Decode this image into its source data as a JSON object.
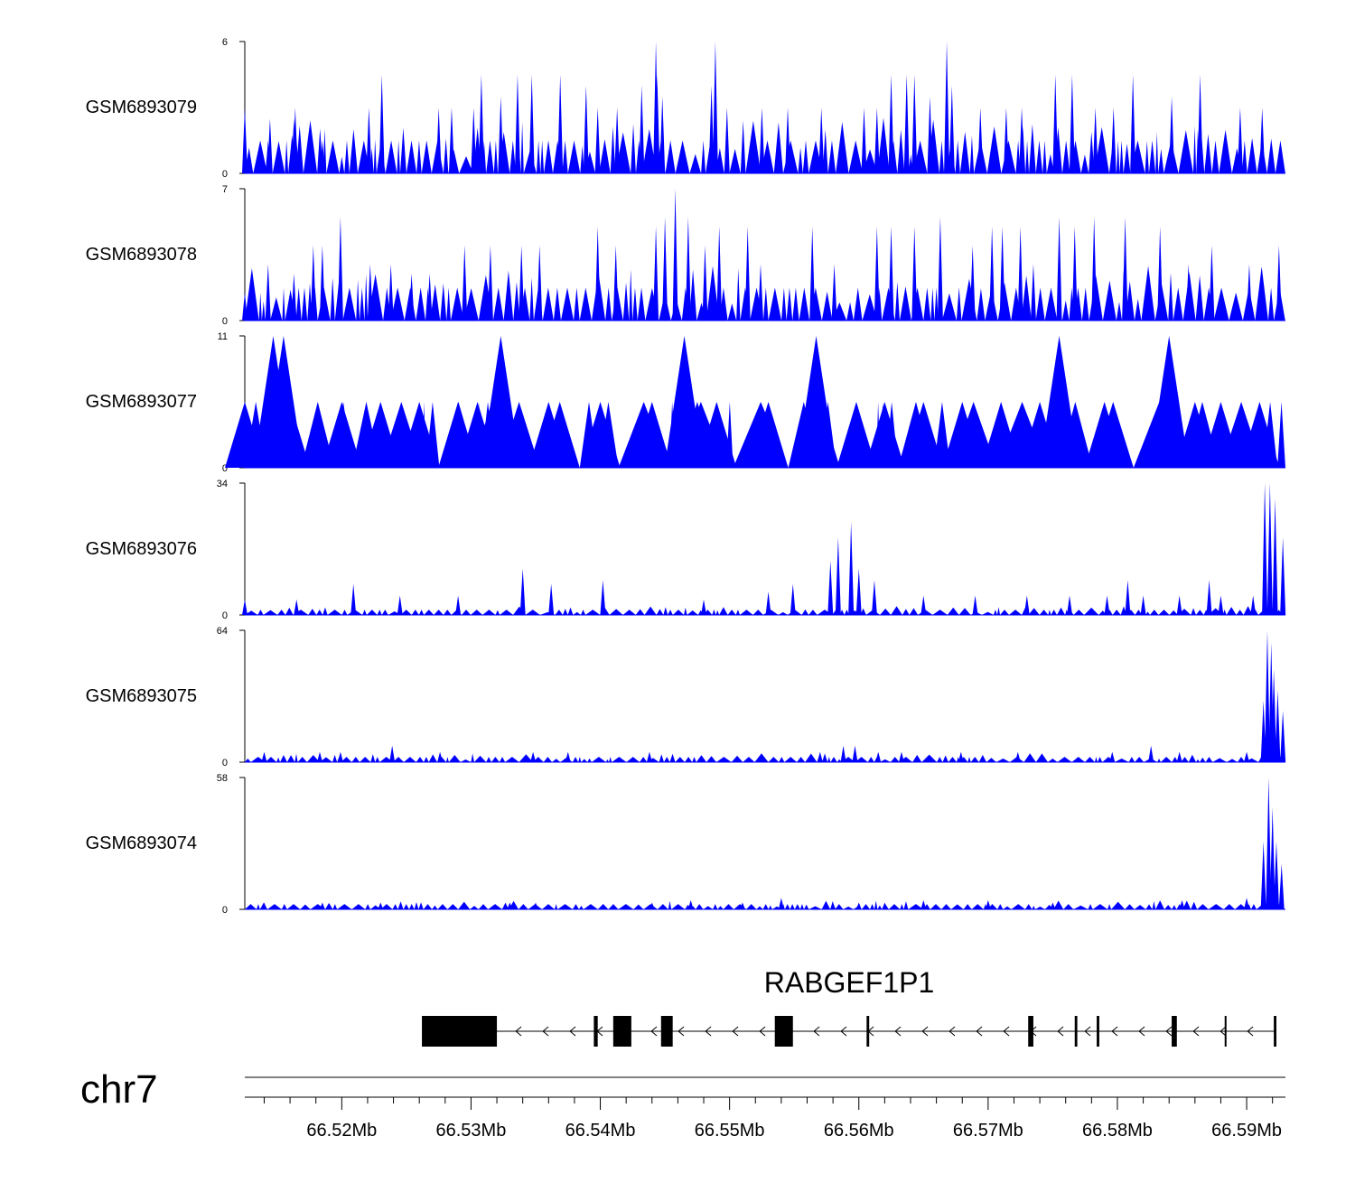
{
  "chart_data": {
    "type": "area",
    "title": "",
    "xlabel": "",
    "ylabel": "",
    "chromosome": "chr7",
    "x_range_mb": [
      66.5125,
      66.593
    ],
    "x_ticks": [
      66.52,
      66.53,
      66.54,
      66.55,
      66.56,
      66.57,
      66.58,
      66.59
    ],
    "x_tick_labels": [
      "66.52Mb",
      "66.53Mb",
      "66.54Mb",
      "66.55Mb",
      "66.56Mb",
      "66.57Mb",
      "66.58Mb",
      "66.59Mb"
    ],
    "minor_tick_step_mb": 0.002,
    "series": [
      {
        "name": "GSM6893079",
        "ylim": [
          0,
          6
        ],
        "ymax_label": "6",
        "ymin_label": "0",
        "color": "#0000ff",
        "peaks": [
          [
            66.5125,
            3
          ],
          [
            66.5143,
            1.5
          ],
          [
            66.5165,
            1.5
          ],
          [
            66.5163,
            2.5
          ],
          [
            66.5185,
            1.5
          ],
          [
            66.5164,
            3
          ],
          [
            66.5221,
            3
          ],
          [
            66.5231,
            4.5
          ],
          [
            66.5275,
            3
          ],
          [
            66.5285,
            3
          ],
          [
            66.5302,
            3
          ],
          [
            66.5308,
            4.5
          ],
          [
            66.5323,
            3.5
          ],
          [
            66.5336,
            4.5
          ],
          [
            66.5347,
            4.5
          ],
          [
            66.5369,
            4.5
          ],
          [
            66.5389,
            4
          ],
          [
            66.5398,
            3
          ],
          [
            66.5413,
            3
          ],
          [
            66.5432,
            4
          ],
          [
            66.5444,
            4.5
          ],
          [
            66.5443,
            6
          ],
          [
            66.5448,
            3.5
          ],
          [
            66.5486,
            4
          ],
          [
            66.5489,
            6
          ],
          [
            66.5498,
            3
          ],
          [
            66.5525,
            3
          ],
          [
            66.5545,
            3
          ],
          [
            66.5571,
            3
          ],
          [
            66.5604,
            3
          ],
          [
            66.5614,
            3
          ],
          [
            66.5625,
            4.5
          ],
          [
            66.5637,
            4.5
          ],
          [
            66.5643,
            4.5
          ],
          [
            66.5655,
            3.5
          ],
          [
            66.5668,
            6
          ],
          [
            66.5672,
            4
          ],
          [
            66.5694,
            3
          ],
          [
            66.5714,
            3
          ],
          [
            66.5726,
            3
          ],
          [
            66.5752,
            4.5
          ],
          [
            66.5765,
            4.5
          ],
          [
            66.5783,
            3
          ],
          [
            66.5797,
            3
          ],
          [
            66.5812,
            4.5
          ],
          [
            66.5842,
            3.5
          ],
          [
            66.5864,
            4.5
          ],
          [
            66.5895,
            3
          ],
          [
            66.5912,
            3
          ]
        ]
      },
      {
        "name": "GSM6893078",
        "ylim": [
          0,
          7
        ],
        "ymax_label": "7",
        "ymin_label": "0",
        "color": "#0000ff",
        "peaks": [
          [
            66.5125,
            1.5
          ],
          [
            66.5143,
            3
          ],
          [
            66.5163,
            2.5
          ],
          [
            66.5178,
            4
          ],
          [
            66.5185,
            4
          ],
          [
            66.5199,
            5.5
          ],
          [
            66.5222,
            3
          ],
          [
            66.5238,
            3
          ],
          [
            66.5254,
            2.5
          ],
          [
            66.5268,
            2.5
          ],
          [
            66.5295,
            4
          ],
          [
            66.5315,
            4
          ],
          [
            66.5339,
            4
          ],
          [
            66.5353,
            4
          ],
          [
            66.5398,
            5
          ],
          [
            66.5412,
            4
          ],
          [
            66.5443,
            5
          ],
          [
            66.545,
            5.5
          ],
          [
            66.5458,
            7
          ],
          [
            66.5468,
            5.5
          ],
          [
            66.5481,
            4
          ],
          [
            66.5492,
            5
          ],
          [
            66.5514,
            5
          ],
          [
            66.5524,
            3
          ],
          [
            66.5564,
            5
          ],
          [
            66.5581,
            3
          ],
          [
            66.5614,
            5
          ],
          [
            66.5625,
            5
          ],
          [
            66.5643,
            5
          ],
          [
            66.5663,
            5.5
          ],
          [
            66.5688,
            4
          ],
          [
            66.5703,
            5
          ],
          [
            66.5711,
            5
          ],
          [
            66.5725,
            5
          ],
          [
            66.5735,
            3
          ],
          [
            66.5755,
            5.5
          ],
          [
            66.5767,
            5
          ],
          [
            66.5782,
            5.5
          ],
          [
            66.5806,
            5.5
          ],
          [
            66.5833,
            5
          ],
          [
            66.5855,
            3
          ],
          [
            66.5873,
            4
          ],
          [
            66.5902,
            3
          ],
          [
            66.5925,
            4
          ]
        ]
      },
      {
        "name": "GSM6893077",
        "ylim": [
          0,
          11
        ],
        "ymax_label": "11",
        "ymin_label": "0",
        "color": "#0000ff",
        "peaks": [
          [
            66.5125,
            5.5
          ],
          [
            66.5147,
            11
          ],
          [
            66.5155,
            11
          ],
          [
            66.516,
            5.5
          ],
          [
            66.52,
            5.5
          ],
          [
            66.523,
            5.5
          ],
          [
            66.526,
            5.5
          ],
          [
            66.529,
            5.5
          ],
          [
            66.5305,
            5.5
          ],
          [
            66.5316,
            5.5
          ],
          [
            66.5323,
            11
          ],
          [
            66.536,
            5.5
          ],
          [
            66.54,
            5.5
          ],
          [
            66.544,
            5.5
          ],
          [
            66.5465,
            11
          ],
          [
            66.5475,
            5.5
          ],
          [
            66.549,
            5.5
          ],
          [
            66.553,
            5.5
          ],
          [
            66.5567,
            11
          ],
          [
            66.557,
            5.5
          ],
          [
            66.562,
            5.5
          ],
          [
            66.565,
            5.5
          ],
          [
            66.568,
            5.5
          ],
          [
            66.571,
            5.5
          ],
          [
            66.574,
            5.5
          ],
          [
            66.5755,
            11
          ],
          [
            66.579,
            5.5
          ],
          [
            66.584,
            11
          ],
          [
            66.586,
            5.5
          ],
          [
            66.588,
            5.5
          ],
          [
            66.591,
            5.5
          ]
        ]
      },
      {
        "name": "GSM6893076",
        "ylim": [
          0,
          34
        ],
        "ymax_label": "34",
        "ymin_label": "0",
        "color": "#0000ff",
        "peaks": [
          [
            66.5125,
            4
          ],
          [
            66.5165,
            4
          ],
          [
            66.5209,
            8
          ],
          [
            66.5245,
            5
          ],
          [
            66.529,
            5
          ],
          [
            66.534,
            12
          ],
          [
            66.5362,
            8
          ],
          [
            66.5402,
            9
          ],
          [
            66.548,
            4
          ],
          [
            66.553,
            6
          ],
          [
            66.5549,
            8
          ],
          [
            66.5578,
            14
          ],
          [
            66.5584,
            20
          ],
          [
            66.5594,
            24
          ],
          [
            66.56,
            12
          ],
          [
            66.5612,
            9
          ],
          [
            66.565,
            5
          ],
          [
            66.569,
            5
          ],
          [
            66.573,
            5
          ],
          [
            66.5763,
            5
          ],
          [
            66.5792,
            5
          ],
          [
            66.5808,
            9
          ],
          [
            66.582,
            5
          ],
          [
            66.5848,
            5
          ],
          [
            66.5871,
            9
          ],
          [
            66.588,
            5
          ],
          [
            66.5905,
            5
          ],
          [
            66.5914,
            34
          ],
          [
            66.5918,
            34
          ],
          [
            66.5922,
            30
          ],
          [
            66.5928,
            20
          ]
        ]
      },
      {
        "name": "GSM6893075",
        "ylim": [
          0,
          64
        ],
        "ymax_label": "64",
        "ymin_label": "0",
        "color": "#0000ff",
        "peaks": [
          [
            66.514,
            5
          ],
          [
            66.5183,
            5
          ],
          [
            66.5199,
            5
          ],
          [
            66.5239,
            8
          ],
          [
            66.5276,
            5
          ],
          [
            66.5348,
            5
          ],
          [
            66.5375,
            5
          ],
          [
            66.5438,
            5
          ],
          [
            66.557,
            5
          ],
          [
            66.5588,
            8
          ],
          [
            66.5597,
            8
          ],
          [
            66.5615,
            5
          ],
          [
            66.5633,
            5
          ],
          [
            66.5679,
            5
          ],
          [
            66.5723,
            5
          ],
          [
            66.5796,
            5
          ],
          [
            66.5826,
            8
          ],
          [
            66.5848,
            5
          ],
          [
            66.59,
            5
          ],
          [
            66.5913,
            30
          ],
          [
            66.5916,
            64
          ],
          [
            66.5919,
            58
          ],
          [
            66.5921,
            45
          ],
          [
            66.5924,
            35
          ],
          [
            66.5928,
            25
          ]
        ]
      },
      {
        "name": "GSM6893074",
        "ylim": [
          0,
          58
        ],
        "ymax_label": "58",
        "ymin_label": "0",
        "color": "#0000ff",
        "peaks": [
          [
            66.514,
            3
          ],
          [
            66.5185,
            3
          ],
          [
            66.523,
            3
          ],
          [
            66.533,
            3
          ],
          [
            66.535,
            3
          ],
          [
            66.544,
            3
          ],
          [
            66.547,
            4
          ],
          [
            66.551,
            3
          ],
          [
            66.554,
            5
          ],
          [
            66.558,
            3
          ],
          [
            66.56,
            3
          ],
          [
            66.562,
            3
          ],
          [
            66.565,
            4
          ],
          [
            66.57,
            4
          ],
          [
            66.575,
            3
          ],
          [
            66.58,
            3
          ],
          [
            66.585,
            4
          ],
          [
            66.59,
            5
          ],
          [
            66.5913,
            30
          ],
          [
            66.5917,
            58
          ],
          [
            66.592,
            45
          ],
          [
            66.5923,
            30
          ],
          [
            66.5927,
            20
          ]
        ]
      }
    ],
    "gene": {
      "name": "RABGEF1P1",
      "strand": "-",
      "span_mb": [
        66.5262,
        66.5923
      ],
      "exons_mb": [
        [
          66.5262,
          66.532
        ],
        [
          66.5395,
          66.5398
        ],
        [
          66.541,
          66.5424
        ],
        [
          66.5447,
          66.5456
        ],
        [
          66.5535,
          66.5549
        ],
        [
          66.5606,
          66.5608
        ],
        [
          66.5731,
          66.5735
        ],
        [
          66.5767,
          66.5769
        ],
        [
          66.5784,
          66.5786
        ],
        [
          66.5842,
          66.5846
        ],
        [
          66.5883,
          66.5884
        ],
        [
          66.5921,
          66.5923
        ]
      ]
    }
  }
}
